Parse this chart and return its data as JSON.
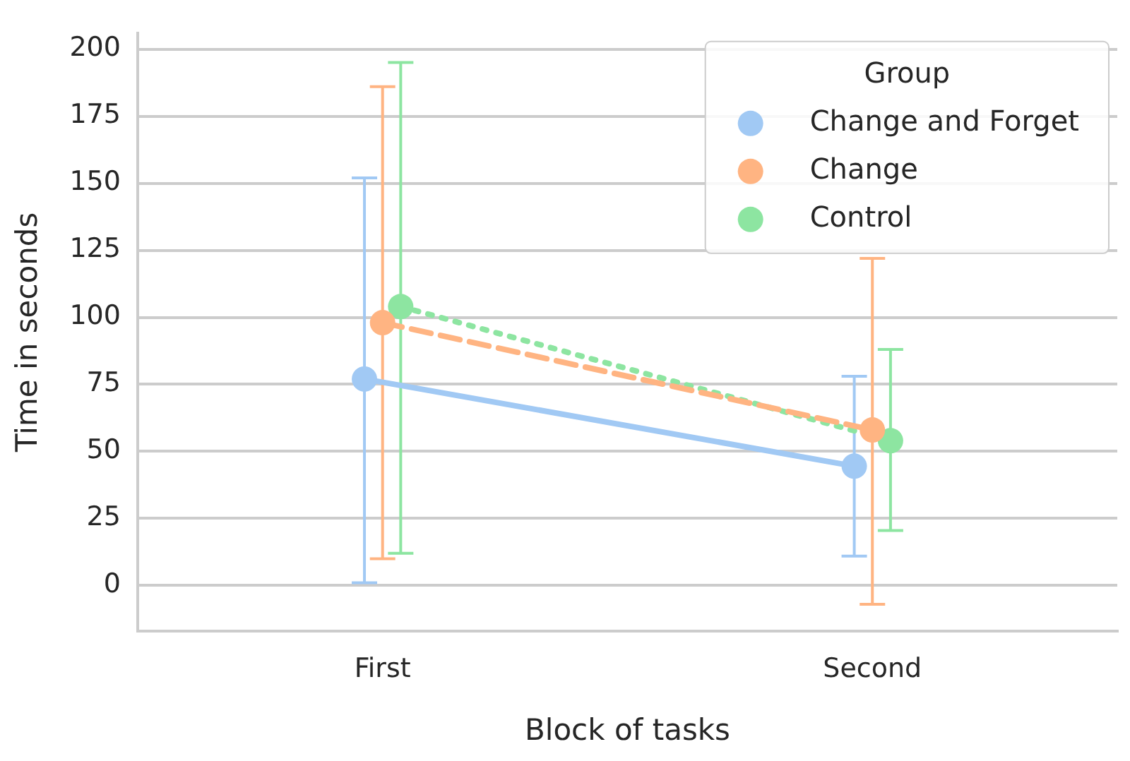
{
  "chart_data": {
    "type": "line",
    "xlabel": "Block of tasks",
    "ylabel": "Time in seconds",
    "legend_title": "Group",
    "categories": [
      "First",
      "Second"
    ],
    "series": [
      {
        "name": "Change and Forget",
        "color": "#a1c9f4",
        "values": [
          77,
          44.5
        ],
        "errors": [
          [
            1,
            152
          ],
          [
            11,
            78
          ]
        ],
        "line_style": "solid"
      },
      {
        "name": "Change",
        "color": "#ffb482",
        "values": [
          98,
          58
        ],
        "errors": [
          [
            10,
            186
          ],
          [
            -7,
            122
          ]
        ],
        "line_style": "dashed"
      },
      {
        "name": "Control",
        "color": "#8de5a1",
        "values": [
          104,
          54
        ],
        "errors": [
          [
            12,
            195
          ],
          [
            20.5,
            88
          ]
        ],
        "line_style": "dotted"
      }
    ],
    "ylim": [
      -17,
      206
    ],
    "yticks": [
      0,
      25,
      50,
      75,
      100,
      125,
      150,
      175,
      200
    ],
    "grid": "y",
    "legend": "top right",
    "marker": "circle"
  }
}
